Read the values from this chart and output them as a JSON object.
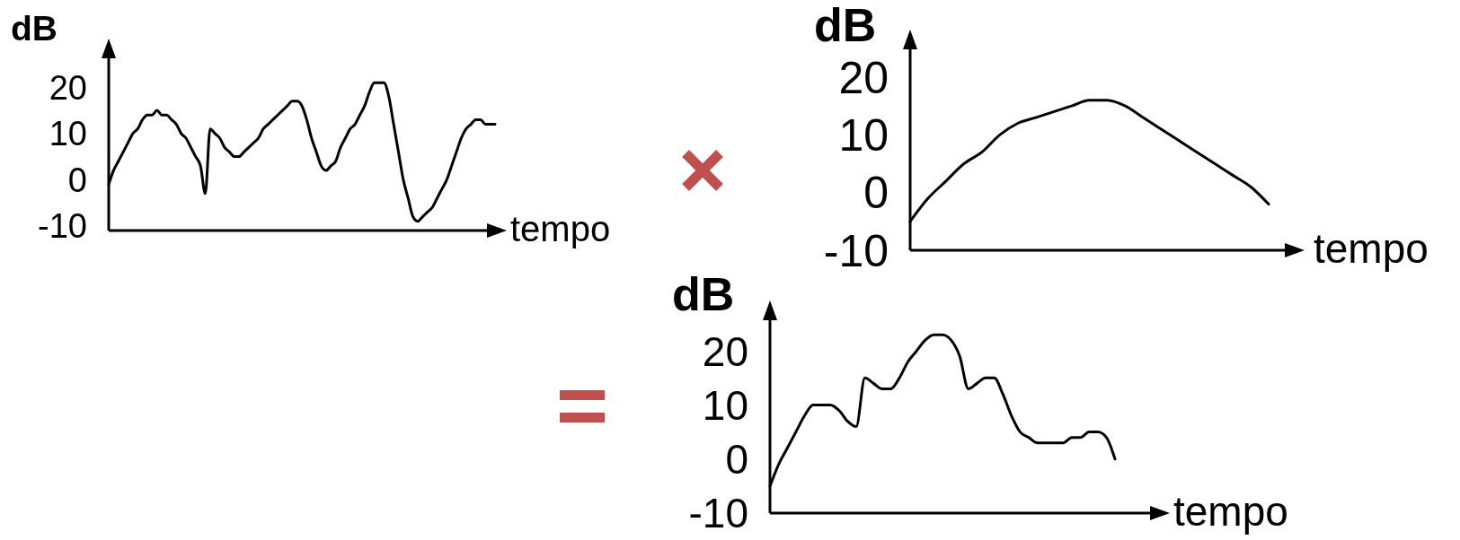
{
  "chart_data": [
    {
      "type": "line",
      "xlabel": "tempo",
      "ylabel": "dB",
      "categories": [
        null,
        null,
        null,
        null,
        null,
        null,
        null,
        null,
        null,
        null,
        null,
        null,
        null,
        null,
        null,
        null,
        null,
        null,
        null,
        null,
        null,
        null,
        null,
        null,
        null,
        null,
        null,
        null,
        null,
        null,
        null,
        null,
        null,
        null,
        null,
        null,
        null,
        null,
        null,
        null,
        null,
        null,
        null,
        null,
        null,
        null,
        null,
        null,
        null,
        null,
        null,
        null,
        null,
        null,
        null,
        null,
        null,
        null,
        null,
        null,
        null,
        null,
        null,
        null,
        null,
        null,
        null,
        null,
        null,
        null,
        null,
        null,
        null,
        null,
        null,
        null,
        null,
        null,
        null,
        null,
        null
      ],
      "series": [
        {
          "color": "#000000",
          "values": [
            -1,
            2,
            4,
            6,
            8,
            10,
            11,
            13,
            14,
            14,
            15,
            14,
            14,
            13,
            12,
            10,
            9,
            7,
            5,
            3,
            -3,
            11,
            10,
            9,
            7,
            6,
            5,
            5,
            6,
            7,
            8,
            9,
            11,
            12,
            13,
            14,
            15,
            16,
            17,
            17,
            16,
            13,
            9,
            6,
            3,
            2,
            3,
            4,
            7,
            9,
            11,
            12,
            14,
            16,
            19,
            21,
            21,
            21,
            18,
            12,
            6,
            0,
            -4,
            -8,
            -9,
            -8,
            -7,
            -6,
            -4,
            -2,
            0,
            3,
            6,
            9,
            11,
            12,
            13,
            13,
            12,
            12,
            12
          ]
        }
      ],
      "ylim": [
        -11,
        29
      ],
      "yticks": [
        -10,
        0,
        10,
        20
      ],
      "grid": false,
      "legend": false,
      "marker": "none",
      "line_style": "solid",
      "tick_labels": "y"
    },
    {
      "type": "line",
      "xlabel": "tempo",
      "ylabel": "dB",
      "categories": [
        null,
        null,
        null,
        null,
        null,
        null,
        null,
        null,
        null,
        null,
        null,
        null,
        null,
        null,
        null,
        null,
        null,
        null,
        null,
        null,
        null
      ],
      "series": [
        {
          "color": "#000000",
          "values": [
            -5,
            -1,
            2,
            5,
            7,
            10,
            12,
            13,
            14,
            15,
            16,
            16,
            15,
            13,
            11,
            9,
            7,
            5,
            3,
            1,
            -2
          ]
        }
      ],
      "ylim": [
        -10,
        27
      ],
      "yticks": [
        -10,
        0,
        10,
        20
      ],
      "grid": false,
      "legend": false,
      "marker": "none",
      "line_style": "solid",
      "tick_labels": "y"
    },
    {
      "type": "line",
      "xlabel": "tempo",
      "ylabel": "dB",
      "categories": [
        null,
        null,
        null,
        null,
        null,
        null,
        null,
        null,
        null,
        null,
        null,
        null,
        null,
        null,
        null,
        null,
        null,
        null,
        null,
        null,
        null,
        null,
        null,
        null,
        null,
        null,
        null,
        null,
        null,
        null,
        null,
        null,
        null,
        null,
        null,
        null,
        null,
        null,
        null,
        null,
        null
      ],
      "series": [
        {
          "color": "#000000",
          "values": [
            -5,
            -1,
            2,
            5,
            8,
            10,
            10,
            10,
            9,
            7,
            6,
            15,
            14,
            13,
            13,
            15,
            18,
            20,
            22,
            23,
            23,
            22,
            19,
            13,
            14,
            15,
            15,
            12,
            8,
            5,
            4,
            3,
            3,
            3,
            3,
            4,
            4,
            5,
            5,
            4,
            0
          ]
        }
      ],
      "ylim": [
        -10,
        28
      ],
      "yticks": [
        -10,
        0,
        10,
        20
      ],
      "grid": false,
      "legend": false,
      "marker": "none",
      "line_style": "solid",
      "tick_labels": "y"
    }
  ]
}
